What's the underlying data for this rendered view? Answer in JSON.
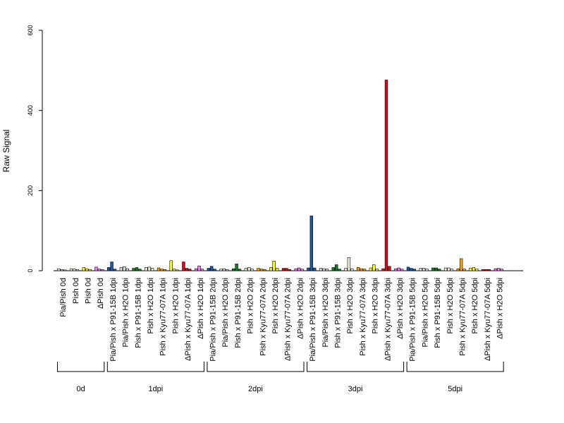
{
  "chart_data": {
    "type": "bar",
    "title": "",
    "xlabel": "",
    "ylabel": "Raw Signal",
    "ylim": [
      0,
      600
    ],
    "yticks": [
      0,
      200,
      400,
      600
    ],
    "grid": false,
    "categories": [
      "Pia/Pish 0d",
      "Pish 0d",
      "Pish 0d",
      "ΔPish 0d",
      "Pia/Pish x P91-15B 1dpi",
      "Pia/Pish x H2O 1dpi",
      "Pish x P91-15B 1dpi",
      "Pish x H2O 1dpi",
      "Pish x Kyu77-07A 1dpi",
      "Pish x H2O 1dpi",
      "ΔPish x Kyu77-07A 1dpi",
      "ΔPish x H2O 1dpi",
      "Pia/Pish x P91-15B 2dpi",
      "Pia/Pish x H2O 2dpi",
      "Pish x P91-15B 2dpi",
      "Pish x H2O 2dpi",
      "Pish x Kyu77-07A 2dpi",
      "Pish x H2O 2dpi",
      "ΔPish x Kyu77-07A 2dpi",
      "ΔPish x H2O 2dpi",
      "Pia/Pish x P91-15B 3dpi",
      "Pia/Pish x H2O 3dpi",
      "Pish x P91-15B 3dpi",
      "Pish x H2O 3dpi",
      "Pish x Kyu77-07A 3dpi",
      "Pish x H2O 3dpi",
      "ΔPish x Kyu77-07A 3dpi",
      "ΔPish x H2O 3dpi",
      "Pia/Pish x P91-15B 5dpi",
      "Pia/Pish x H2O 5dpi",
      "Pish x P91-15B 5dpi",
      "Pish x H2O 5dpi",
      "Pish x Kyu77-07A 5dpi",
      "Pish x H2O 5dpi",
      "ΔPish x Kyu77-07A 5dpi",
      "ΔPish x H2O 5dpi"
    ],
    "category_colors": [
      "#e0e0e0",
      "#f0f0e0",
      "#ffff33",
      "#ee82ee",
      "#1f5aa0",
      "#e0e0e0",
      "#1a7a2a",
      "#f0f0e0",
      "#ffa500",
      "#ffff33",
      "#cc1122",
      "#ee82ee",
      "#1f5aa0",
      "#e0e0e0",
      "#1a7a2a",
      "#f0f0e0",
      "#ffa500",
      "#ffff33",
      "#cc1122",
      "#ee82ee",
      "#1f5aa0",
      "#e0e0e0",
      "#1a7a2a",
      "#f0f0e0",
      "#ffa500",
      "#ffff33",
      "#cc1122",
      "#ee82ee",
      "#1f5aa0",
      "#e0e0e0",
      "#1a7a2a",
      "#f0f0e0",
      "#ffa500",
      "#ffff33",
      "#cc1122",
      "#ee82ee"
    ],
    "values": [
      [
        5,
        3,
        2
      ],
      [
        5,
        4,
        3
      ],
      [
        8,
        5,
        3
      ],
      [
        9,
        4,
        3
      ],
      [
        8,
        22,
        4
      ],
      [
        8,
        10,
        5
      ],
      [
        6,
        8,
        4
      ],
      [
        8,
        9,
        6
      ],
      [
        7,
        4,
        3
      ],
      [
        25,
        4,
        2
      ],
      [
        22,
        6,
        4
      ],
      [
        5,
        12,
        4
      ],
      [
        6,
        11,
        4
      ],
      [
        4,
        5,
        3
      ],
      [
        5,
        17,
        4
      ],
      [
        6,
        8,
        4
      ],
      [
        6,
        4,
        3
      ],
      [
        8,
        24,
        6
      ],
      [
        6,
        6,
        3
      ],
      [
        5,
        7,
        4
      ],
      [
        7,
        137,
        7
      ],
      [
        6,
        5,
        4
      ],
      [
        8,
        15,
        4
      ],
      [
        6,
        33,
        5
      ],
      [
        8,
        5,
        4
      ],
      [
        7,
        15,
        4
      ],
      [
        5,
        476,
        11
      ],
      [
        5,
        7,
        4
      ],
      [
        9,
        6,
        4
      ],
      [
        6,
        6,
        4
      ],
      [
        7,
        7,
        4
      ],
      [
        7,
        7,
        4
      ],
      [
        5,
        30,
        4
      ],
      [
        6,
        8,
        4
      ],
      [
        3,
        3,
        3
      ],
      [
        5,
        6,
        4
      ]
    ],
    "groups": [
      {
        "label": "0d",
        "start": 0,
        "end": 3
      },
      {
        "label": "1dpi",
        "start": 4,
        "end": 11
      },
      {
        "label": "2dpi",
        "start": 12,
        "end": 19
      },
      {
        "label": "3dpi",
        "start": 20,
        "end": 27
      },
      {
        "label": "5dpi",
        "start": 28,
        "end": 35
      }
    ]
  }
}
